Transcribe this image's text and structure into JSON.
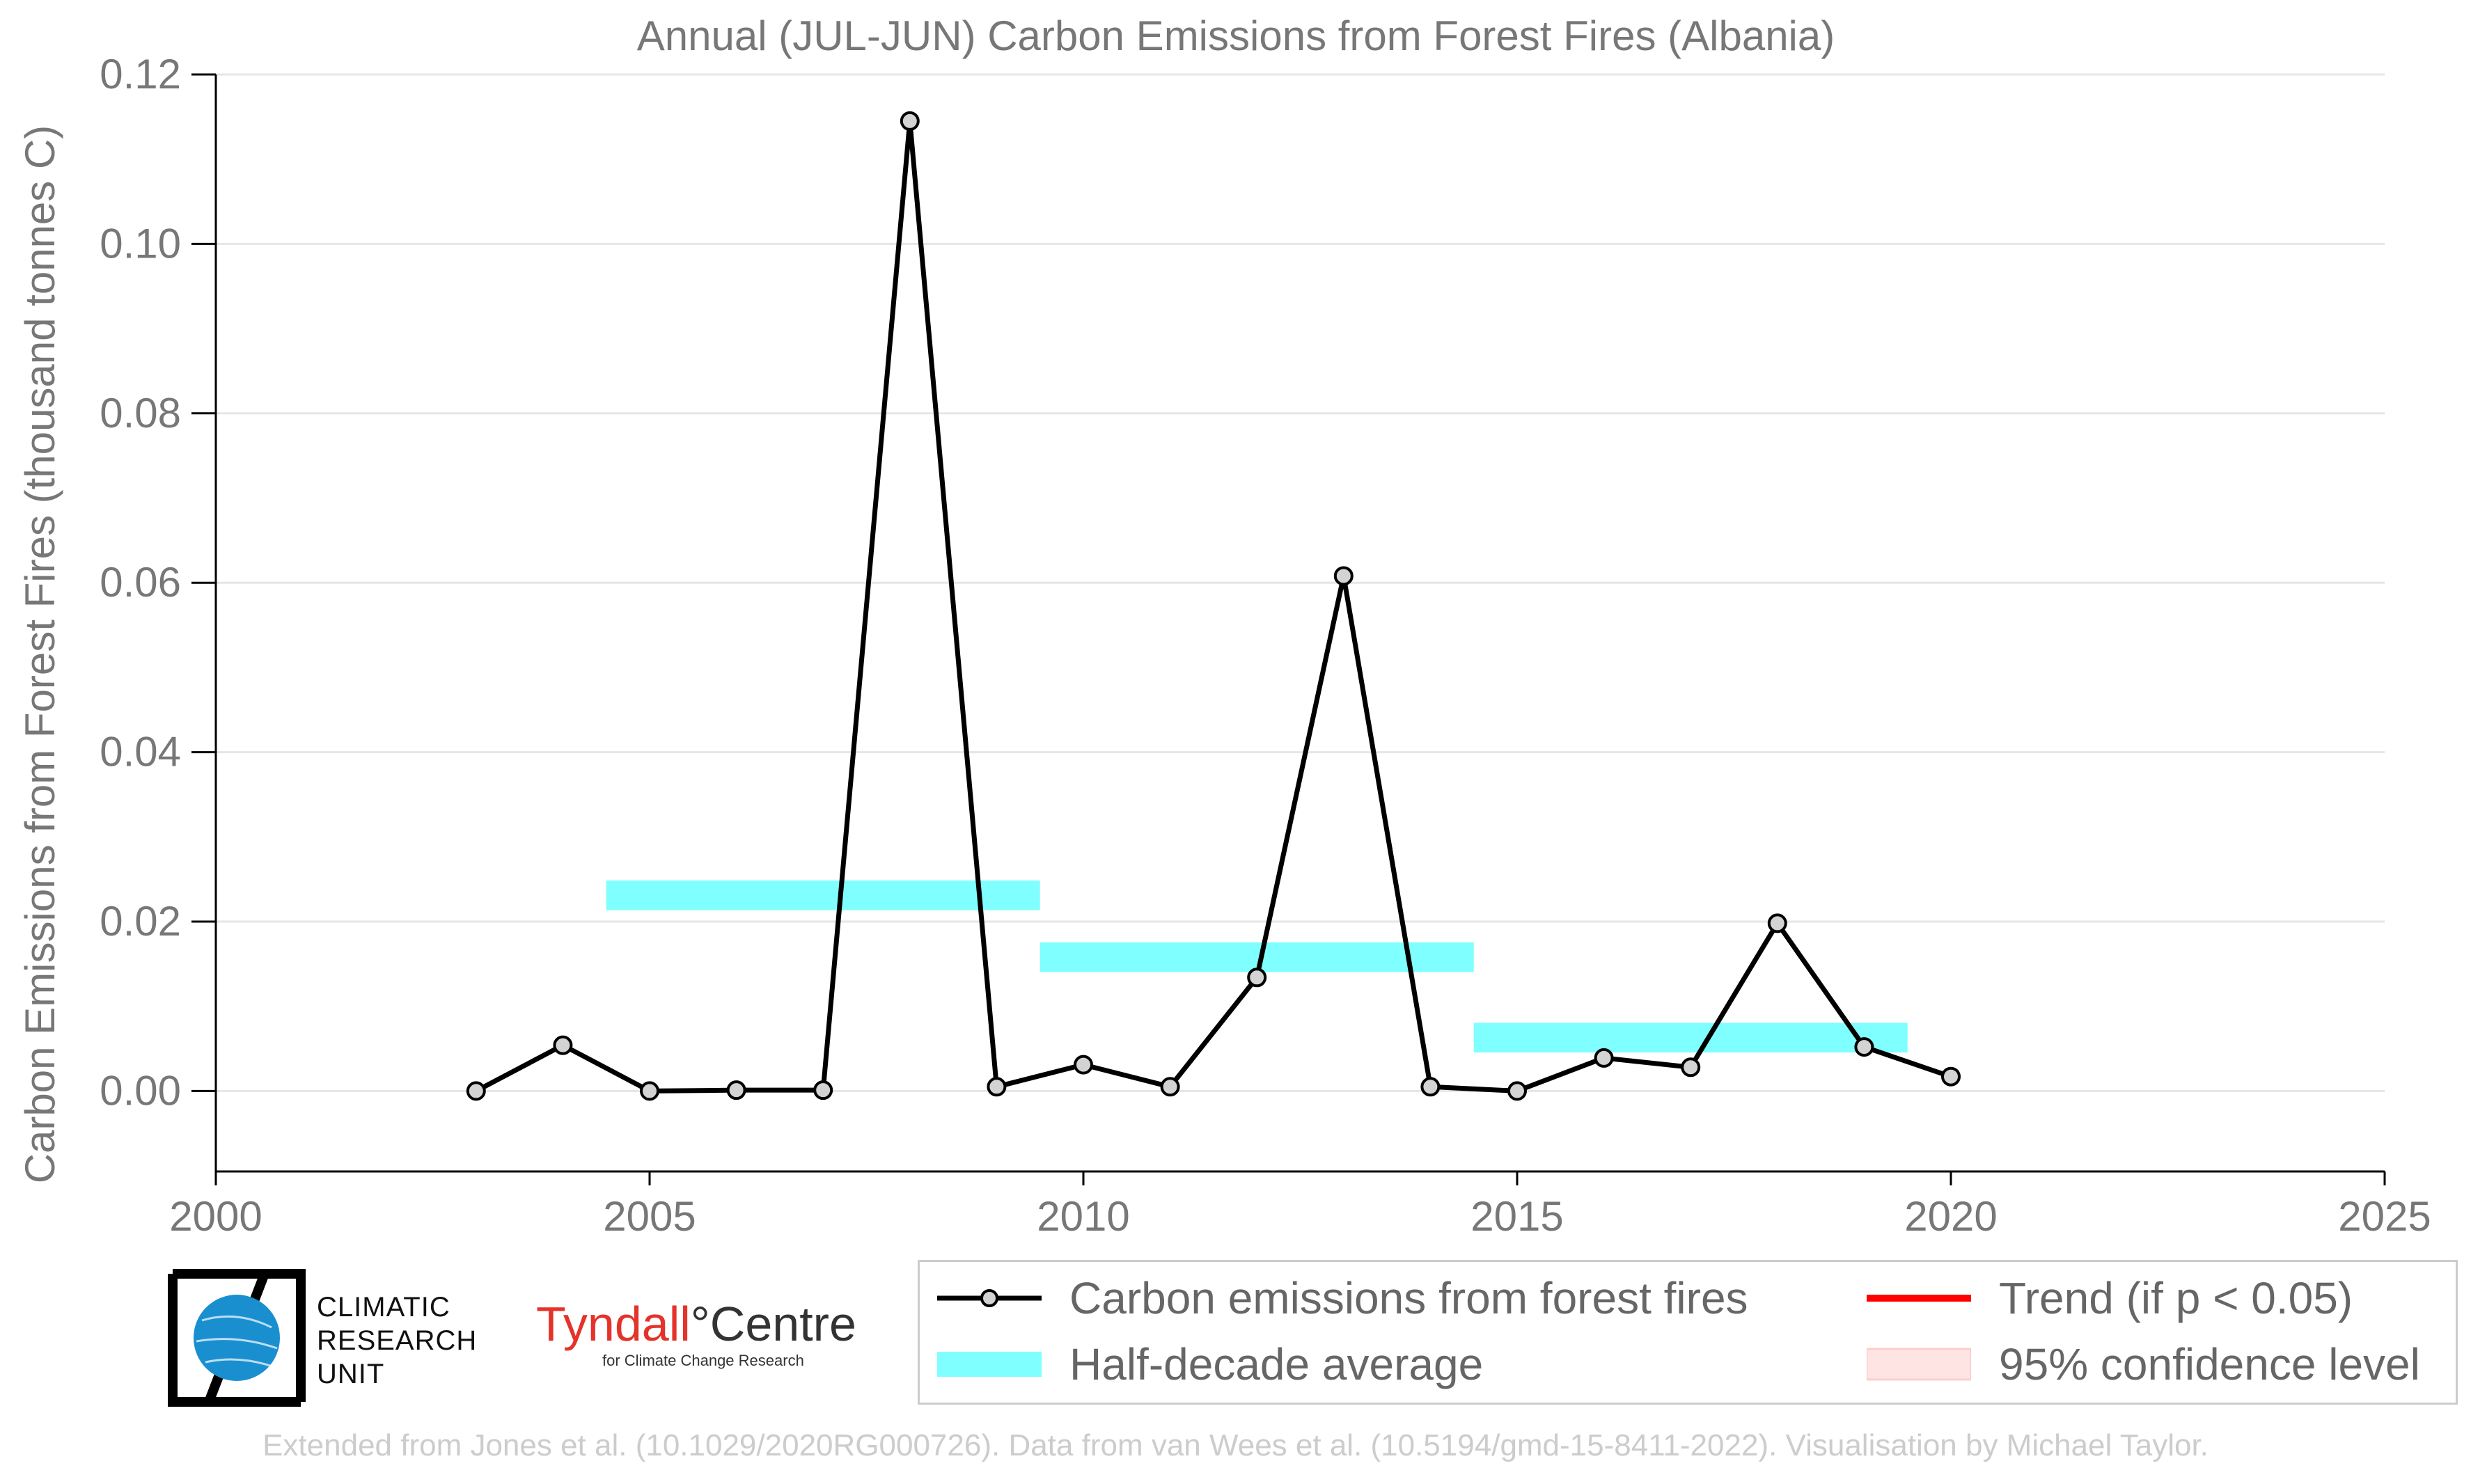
{
  "chart_data": {
    "type": "line",
    "title": "Annual (JUL-JUN) Carbon Emissions from Forest Fires (Albania)",
    "xlabel": "",
    "ylabel": "Carbon Emissions from Forest Fires (thousand tonnes C)",
    "xlim": [
      2000,
      2025
    ],
    "ylim": [
      -0.0095,
      0.12
    ],
    "x_ticks": [
      2000,
      2005,
      2010,
      2015,
      2020,
      2025
    ],
    "y_ticks": [
      0.0,
      0.02,
      0.04,
      0.06,
      0.08,
      0.1,
      0.12
    ],
    "y_tick_labels": [
      "0.00",
      "0.02",
      "0.04",
      "0.06",
      "0.08",
      "0.10",
      "0.12"
    ],
    "grid": "horizontal",
    "legend_position": "bottom",
    "series": [
      {
        "name": "Carbon emissions from forest fires",
        "kind": "line-markers",
        "color": "#000000",
        "marker_fill": "#d3d3d3",
        "x": [
          2003,
          2004,
          2005,
          2006,
          2007,
          2008,
          2009,
          2010,
          2011,
          2012,
          2013,
          2014,
          2015,
          2016,
          2017,
          2018,
          2019,
          2020
        ],
        "y": [
          0.0,
          0.0054,
          0.0,
          0.0001,
          0.0001,
          0.1145,
          0.0005,
          0.0031,
          0.0005,
          0.0134,
          0.0608,
          0.0005,
          0.0,
          0.0039,
          0.0028,
          0.0198,
          0.0052,
          0.0017
        ]
      },
      {
        "name": "Half-decade average",
        "kind": "bands",
        "color": "#7fffff",
        "segments": [
          {
            "x_start": 2004.5,
            "x_end": 2009.5,
            "y": 0.0231
          },
          {
            "x_start": 2009.5,
            "x_end": 2014.5,
            "y": 0.0158
          },
          {
            "x_start": 2014.5,
            "x_end": 2019.5,
            "y": 0.0063
          }
        ]
      },
      {
        "name": "Trend (if p < 0.05)",
        "kind": "legend-only",
        "color": "#ff0000"
      },
      {
        "name": "95% confidence level",
        "kind": "legend-only",
        "color": "#ffe4e4"
      }
    ]
  },
  "logos": {
    "cru_lines": [
      "CLIMATIC",
      "RESEARCH",
      "UNIT"
    ],
    "tyndall_name_a": "Tyndall",
    "tyndall_degree": "°",
    "tyndall_name_b": "Centre",
    "tyndall_subtitle": "for Climate Change Research"
  },
  "footer": "Extended from Jones et al. (10.1029/2020RG000726). Data from van Wees et al. (10.5194/gmd-15-8411-2022). Visualisation by Michael Taylor.",
  "colors": {
    "axis_text": "#777777",
    "grid": "#e6e6e6",
    "line": "#000000",
    "band": "#7fffff",
    "trend": "#ff0000",
    "confidence": "#ffe4e4",
    "cru_blue": "#1a8fd0",
    "tyndall_red": "#e4332a"
  }
}
